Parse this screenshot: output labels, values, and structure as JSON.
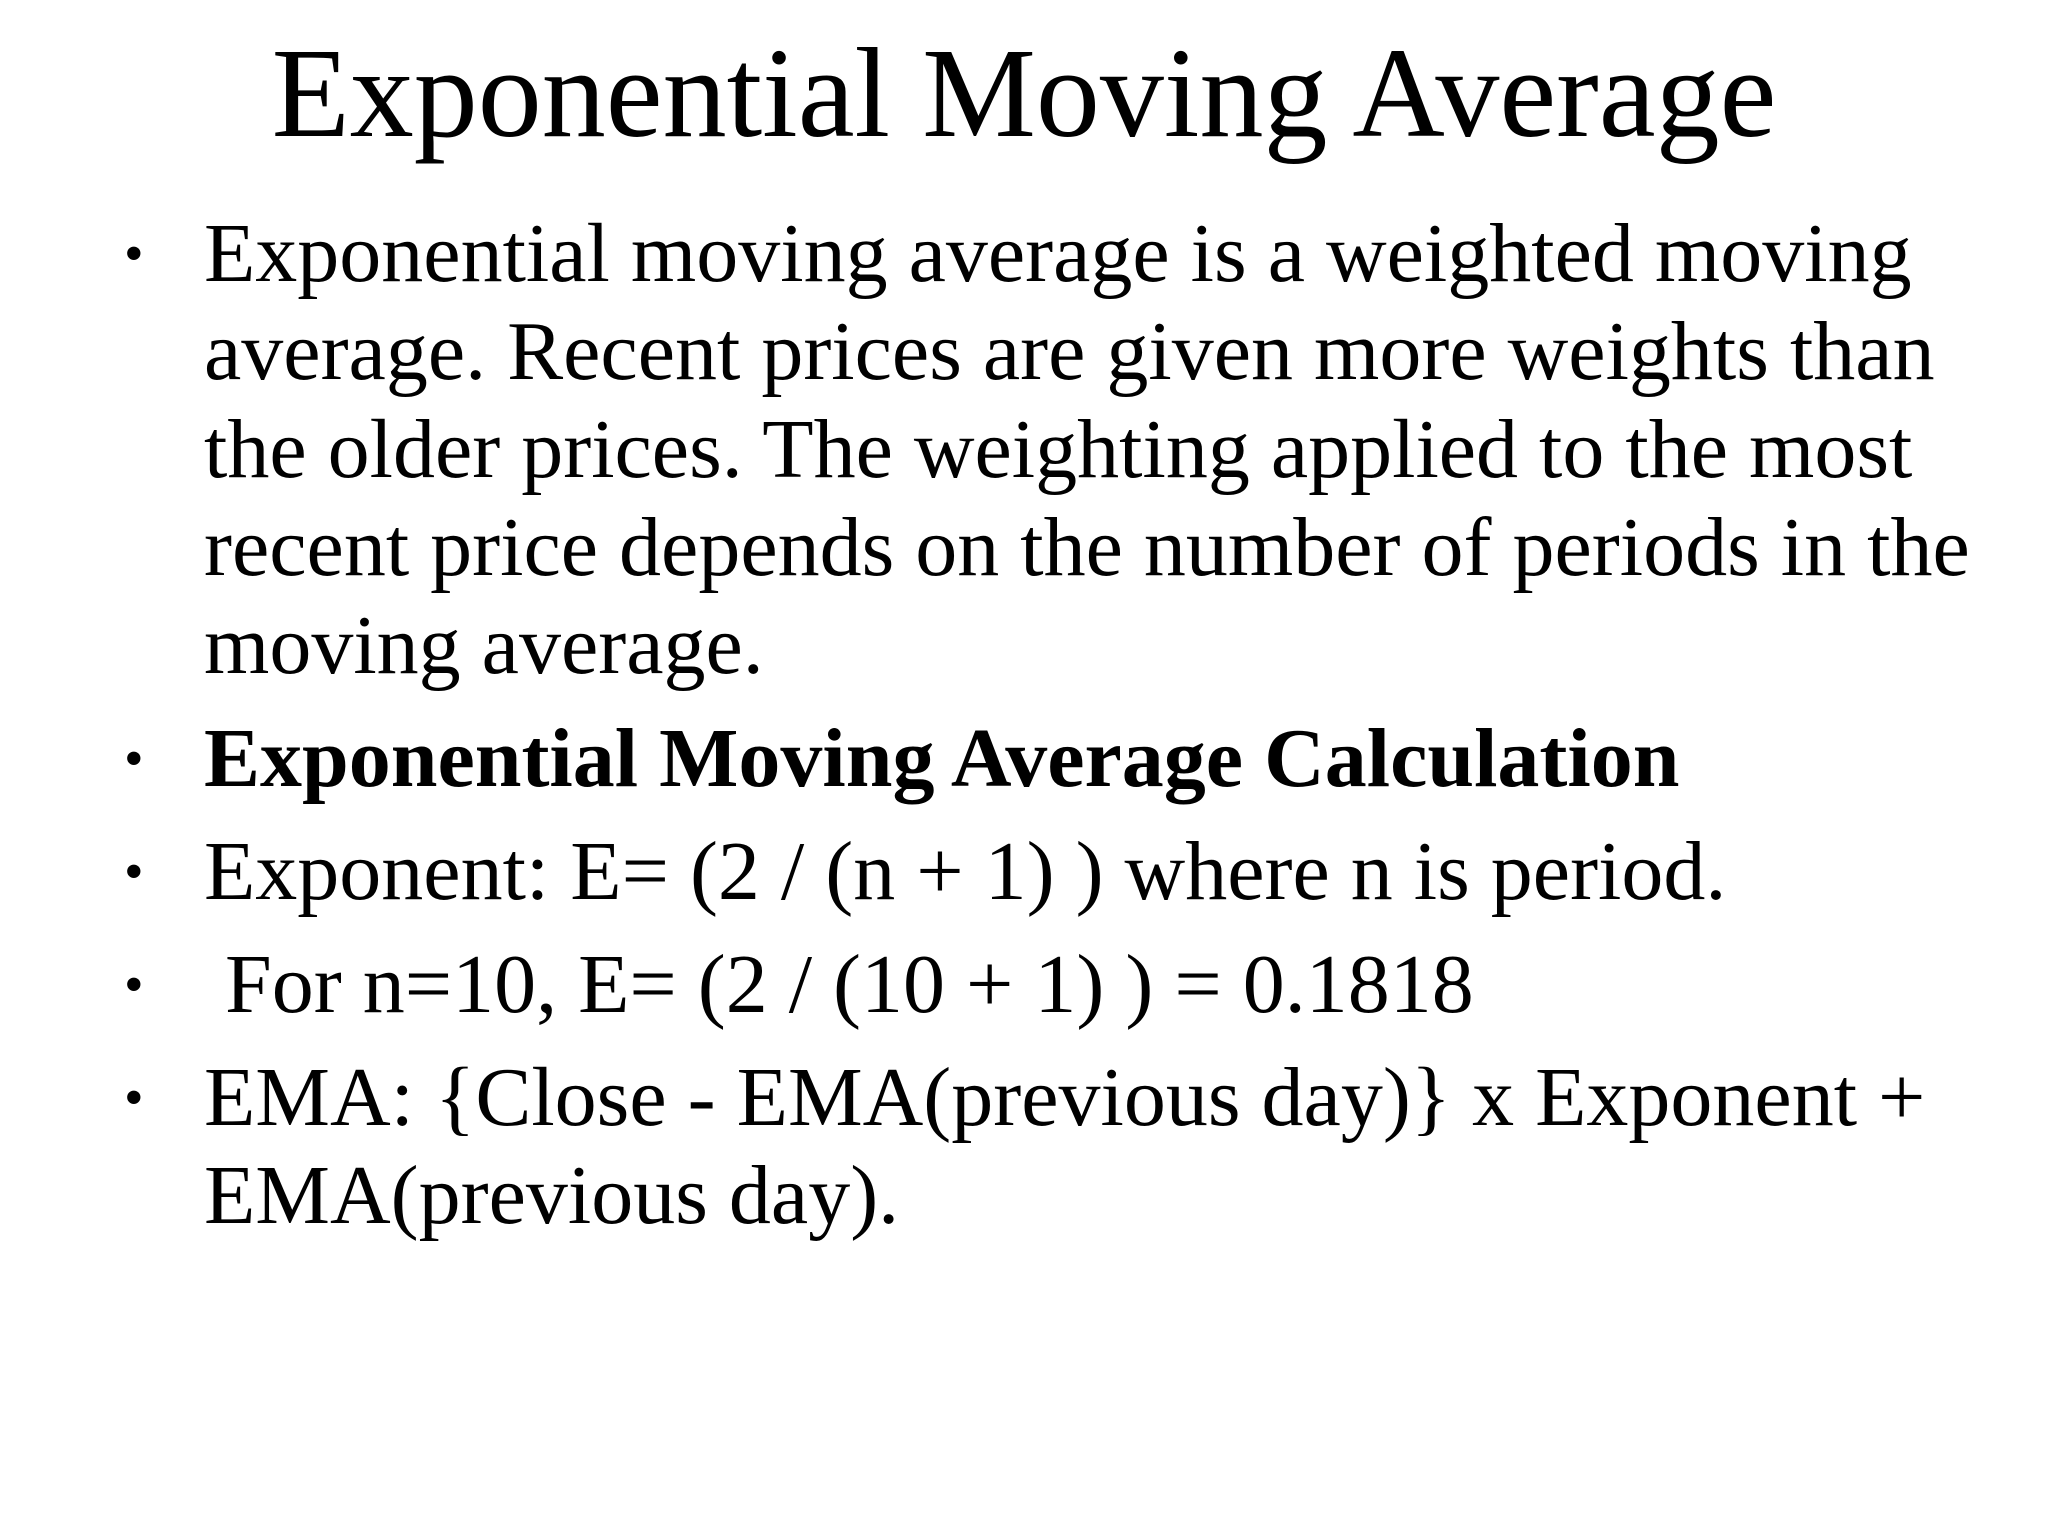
{
  "slide": {
    "title": "Exponential Moving Average",
    "bullets": [
      {
        "text": "Exponential moving average is a weighted moving average. Recent prices are given more weights than the older prices. The weighting applied to the most recent price depends on the number of periods in the moving average."
      },
      {
        "text": "Exponential Moving Average Calculation"
      },
      {
        "text": "Exponent: E= (2 / (n + 1) ) where n is period."
      },
      {
        "text": " For n=10, E= (2 / (10 + 1) ) = 0.1818"
      },
      {
        "text": "EMA: {Close - EMA(previous day)} x Exponent + EMA(previous day)."
      }
    ]
  }
}
